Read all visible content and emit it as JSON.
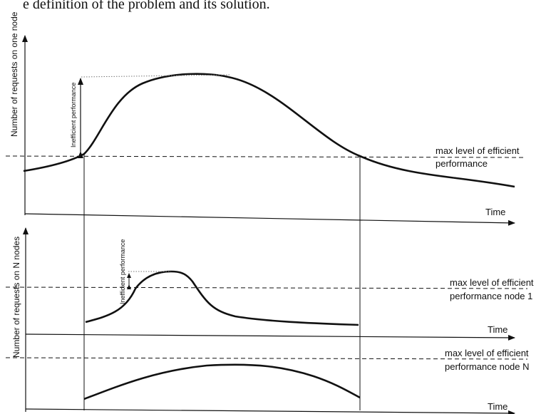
{
  "header_text": "e definition of the problem and its solution.",
  "top_panel": {
    "y_axis_label": "Number of requests on one node",
    "x_axis_label": "Time",
    "threshold_label_line1": "max level of efficient",
    "threshold_label_line2": "performance",
    "gap_label": "Inefficient performance"
  },
  "middle_panel": {
    "y_axis_label": "Number of requests on N nodes",
    "x_axis_label": "Time",
    "threshold_label_line1": "max level of efficient",
    "threshold_label_line2": "performance node 1",
    "gap_label": "Inefficient performance"
  },
  "bottom_panel": {
    "x_axis_label": "Time",
    "threshold_label_line1": "max level of efficient",
    "threshold_label_line2": "performance node N"
  }
}
